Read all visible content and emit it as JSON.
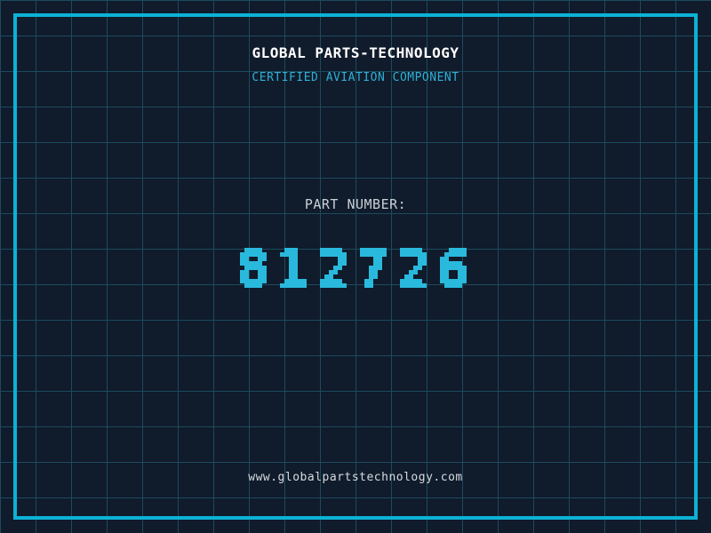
{
  "header": {
    "company": "GLOBAL PARTS-TECHNOLOGY",
    "tagline": "CERTIFIED AVIATION COMPONENT"
  },
  "part": {
    "label": "PART NUMBER:",
    "number": "812726"
  },
  "footer": {
    "website": "www.globalpartstechnology.com"
  },
  "colors": {
    "background": "#101b2b",
    "grid_line": "#1c4b5e",
    "frame": "#0cb2d6",
    "company_text": "#ffffff",
    "tagline_text": "#2fb0d4",
    "label_text": "#c9d0d6",
    "number_text": "#29b9dc",
    "website_text": "#d6dbe0"
  }
}
